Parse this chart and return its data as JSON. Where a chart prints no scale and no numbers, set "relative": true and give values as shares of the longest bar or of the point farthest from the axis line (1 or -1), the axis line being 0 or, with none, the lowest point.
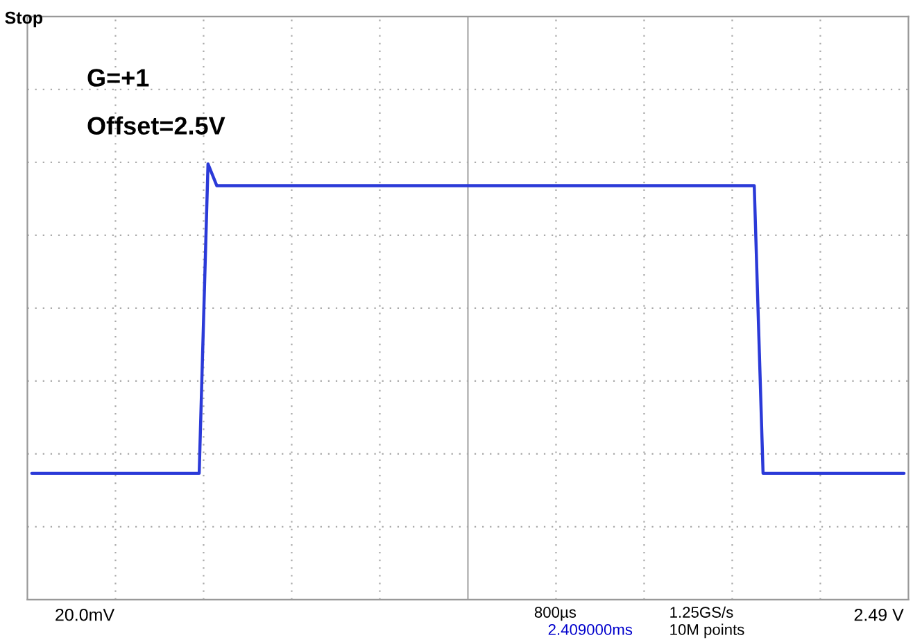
{
  "chart_data": {
    "type": "line",
    "relative": true,
    "grid": true,
    "legend": false,
    "categories": [
      null,
      null,
      null,
      null,
      null,
      null,
      null,
      null,
      null,
      null,
      null,
      null,
      null,
      null,
      null,
      null,
      null,
      null,
      null,
      null,
      null,
      null,
      null,
      null,
      null,
      null,
      null,
      null,
      null,
      null,
      null,
      null,
      null,
      null,
      null,
      null,
      null,
      null,
      null,
      null,
      null,
      null,
      null,
      null,
      null,
      null,
      null,
      null,
      null,
      null,
      null,
      null,
      null,
      null,
      null,
      null,
      null,
      null,
      null,
      null,
      null,
      null,
      null,
      null,
      null,
      null,
      null,
      null,
      null,
      null,
      null,
      null,
      null,
      null,
      null,
      null,
      null,
      null,
      null,
      null,
      null,
      null,
      null,
      null,
      null,
      null,
      null,
      null,
      null,
      null,
      null,
      null,
      null,
      null,
      null,
      null,
      null,
      null,
      null,
      null
    ],
    "series": [
      {
        "color": "#2b3ad8",
        "values": [
          0.29,
          0.29,
          0.29,
          0.29,
          0.29,
          0.29,
          0.29,
          0.29,
          0.29,
          0.29,
          0.29,
          0.29,
          0.29,
          0.29,
          0.29,
          0.29,
          0.29,
          0.29,
          0.29,
          0.29,
          1,
          0.95,
          0.95,
          0.95,
          0.95,
          0.95,
          0.95,
          0.95,
          0.95,
          0.95,
          0.95,
          0.95,
          0.95,
          0.95,
          0.95,
          0.95,
          0.95,
          0.95,
          0.95,
          0.95,
          0.95,
          0.95,
          0.95,
          0.95,
          0.95,
          0.95,
          0.95,
          0.95,
          0.95,
          0.95,
          0.95,
          0.95,
          0.95,
          0.95,
          0.95,
          0.95,
          0.95,
          0.95,
          0.95,
          0.95,
          0.95,
          0.95,
          0.95,
          0.95,
          0.95,
          0.95,
          0.95,
          0.95,
          0.95,
          0.95,
          0.95,
          0.95,
          0.95,
          0.95,
          0.95,
          0.95,
          0.95,
          0.95,
          0.95,
          0.95,
          0.95,
          0.95,
          0.95,
          0.29,
          0.29,
          0.29,
          0.29,
          0.29,
          0.29,
          0.29,
          0.29,
          0.29,
          0.29,
          0.29,
          0.29,
          0.29,
          0.29,
          0.29,
          0.29,
          0.29
        ]
      }
    ],
    "annotations": [
      "G=+1",
      "Offset=2.5V",
      "Stop",
      "20.0mV",
      "800µs",
      "2.409000ms",
      "1.25GS/s",
      "10M points",
      "2.49 V"
    ]
  }
}
